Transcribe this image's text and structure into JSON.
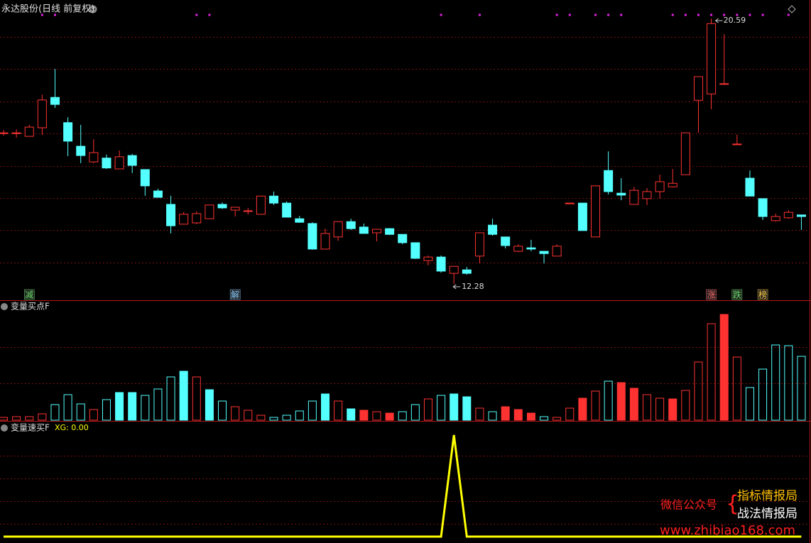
{
  "chart_data": [
    {
      "type": "candlestick",
      "title": "永达股份(日线 前复权)",
      "ylim": [
        11.79,
        20.77
      ],
      "up_color": "#ff3232",
      "down_color": "#54ffff",
      "grid": true,
      "open": [
        17.01,
        16.99,
        16.9,
        17.17,
        18.12,
        17.33,
        16.59,
        16.1,
        16.22,
        15.88,
        16.3,
        15.86,
        15.19,
        14.77,
        14.15,
        14.19,
        14.32,
        14.77,
        14.59,
        14.57,
        14.46,
        15.03,
        14.81,
        14.32,
        14.17,
        13.37,
        13.75,
        14.23,
        14.06,
        13.88,
        14.01,
        13.83,
        13.57,
        13.01,
        13.12,
        12.61,
        12.72,
        13.15,
        14.12,
        13.75,
        13.3,
        13.41,
        13.3,
        13.15,
        14.81,
        14.81,
        13.75,
        15.83,
        15.12,
        14.77,
        14.95,
        15.17,
        15.32,
        15.7,
        18.03,
        18.23,
        18.55,
        16.66,
        15.59,
        14.95,
        14.26,
        14.35,
        14.44
      ],
      "high": [
        17.1,
        17.12,
        17.26,
        18.21,
        19.01,
        17.5,
        17.26,
        16.81,
        16.33,
        16.46,
        16.35,
        15.86,
        15.26,
        15.04,
        14.53,
        14.55,
        14.75,
        14.83,
        14.68,
        14.66,
        15.03,
        15.17,
        14.86,
        14.41,
        14.21,
        14.01,
        14.23,
        14.32,
        14.17,
        13.99,
        14.03,
        13.83,
        13.57,
        13.17,
        13.17,
        12.83,
        12.81,
        13.88,
        14.32,
        13.75,
        13.52,
        13.66,
        13.3,
        13.52,
        14.81,
        14.81,
        15.35,
        16.43,
        15.59,
        15.32,
        15.28,
        15.7,
        15.88,
        17.01,
        18.77,
        20.59,
        20.1,
        16.95,
        15.83,
        14.95,
        14.48,
        14.59,
        14.44
      ],
      "low": [
        16.92,
        16.86,
        16.9,
        16.95,
        17.79,
        16.28,
        16.06,
        16.06,
        15.88,
        15.88,
        15.75,
        15.04,
        14.99,
        13.86,
        14.15,
        14.15,
        14.32,
        14.63,
        14.39,
        14.46,
        14.46,
        14.75,
        14.37,
        14.19,
        13.35,
        13.37,
        13.63,
        13.97,
        13.86,
        13.61,
        13.81,
        13.52,
        13.06,
        12.86,
        12.63,
        12.28,
        12.57,
        12.92,
        13.79,
        13.39,
        13.28,
        13.3,
        12.92,
        13.15,
        14.81,
        13.95,
        13.75,
        15.08,
        14.9,
        14.77,
        14.75,
        14.95,
        15.3,
        15.7,
        17.01,
        17.75,
        18.55,
        16.66,
        15.03,
        14.28,
        14.23,
        14.32,
        13.97
      ],
      "close": [
        17.01,
        17.01,
        17.19,
        18.04,
        17.9,
        16.75,
        16.3,
        16.39,
        15.91,
        16.26,
        15.99,
        15.35,
        14.99,
        14.1,
        14.46,
        14.48,
        14.75,
        14.66,
        14.68,
        14.57,
        15.03,
        14.81,
        14.37,
        14.21,
        13.37,
        13.86,
        14.23,
        14.01,
        13.86,
        13.99,
        13.83,
        13.57,
        13.08,
        13.12,
        12.68,
        12.83,
        12.61,
        13.88,
        13.83,
        13.48,
        13.46,
        13.37,
        13.23,
        13.46,
        14.81,
        13.95,
        15.35,
        15.17,
        15.06,
        15.21,
        15.17,
        15.48,
        15.43,
        17.01,
        18.77,
        20.43,
        18.55,
        16.66,
        15.03,
        14.39,
        14.39,
        14.52,
        14.39
      ],
      "marker_x": [
        3,
        4,
        15,
        16,
        34,
        37,
        43,
        44,
        46,
        47,
        48,
        52,
        53,
        54,
        55,
        56,
        57,
        58,
        59,
        61
      ],
      "marker_color": "#e020e0",
      "signals": [
        {
          "x": 2,
          "label": "减",
          "color": "#66dd66"
        },
        {
          "x": 18,
          "label": "解",
          "color": "#88ccff"
        },
        {
          "x": 55,
          "label": "涨",
          "color": "#ff6666"
        },
        {
          "x": 57,
          "label": "跌",
          "color": "#66dd66"
        },
        {
          "x": 59,
          "label": "榜",
          "color": "#ffcc44"
        }
      ]
    },
    {
      "type": "bar",
      "title": "变量买点F",
      "ylim": [
        0,
        168
      ],
      "grid": true,
      "values": [
        4,
        5,
        5,
        9,
        22,
        36,
        23,
        15,
        29,
        39,
        39,
        35,
        44,
        61,
        69,
        61,
        43,
        27,
        19,
        14,
        7,
        4,
        7,
        13,
        27,
        37,
        27,
        16,
        14,
        12,
        10,
        12,
        22,
        30,
        35,
        37,
        33,
        17,
        12,
        19,
        15,
        10,
        5,
        4,
        17,
        31,
        41,
        55,
        53,
        45,
        36,
        31,
        30,
        42,
        82,
        136,
        149,
        89,
        46,
        72,
        106,
        105,
        90
      ],
      "colors": [
        "#ff3232",
        "#ff3232",
        "#ff3232",
        "#ff3232",
        "#54ffff",
        "#54ffff",
        "#54ffff",
        "#ff3232",
        "#54ffff",
        "#54ffff",
        "#54ffff",
        "#54ffff",
        "#54ffff",
        "#54ffff",
        "#54ffff",
        "#ff3232",
        "#54ffff",
        "#54ffff",
        "#ff3232",
        "#ff3232",
        "#ff3232",
        "#54ffff",
        "#54ffff",
        "#54ffff",
        "#54ffff",
        "#54ffff",
        "#ff3232",
        "#54ffff",
        "#ff3232",
        "#ff3232",
        "#ff3232",
        "#54ffff",
        "#54ffff",
        "#ff3232",
        "#54ffff",
        "#54ffff",
        "#54ffff",
        "#ff3232",
        "#54ffff",
        "#ff3232",
        "#ff3232",
        "#ff3232",
        "#54ffff",
        "#ff3232",
        "#ff3232",
        "#ff3232",
        "#ff3232",
        "#54ffff",
        "#ff3232",
        "#ff3232",
        "#ff3232",
        "#ff3232",
        "#ff3232",
        "#ff3232",
        "#ff3232",
        "#ff3232",
        "#ff3232",
        "#ff3232",
        "#54ffff",
        "#54ffff",
        "#54ffff",
        "#54ffff",
        "#54ffff"
      ],
      "filled": [
        false,
        false,
        false,
        false,
        false,
        false,
        false,
        false,
        false,
        true,
        true,
        false,
        false,
        false,
        true,
        false,
        true,
        false,
        false,
        false,
        false,
        false,
        false,
        false,
        false,
        true,
        false,
        true,
        true,
        false,
        true,
        false,
        false,
        false,
        false,
        true,
        true,
        false,
        false,
        true,
        true,
        true,
        false,
        false,
        false,
        true,
        false,
        false,
        true,
        true,
        false,
        false,
        true,
        false,
        false,
        false,
        true,
        false,
        false,
        false,
        false,
        false,
        false
      ]
    },
    {
      "type": "line",
      "title": "变量速买F",
      "legend": "XG: 0.00",
      "ylim": [
        0,
        1
      ],
      "color": "#ffff00",
      "grid": true,
      "values": [
        0,
        0,
        0,
        0,
        0,
        0,
        0,
        0,
        0,
        0,
        0,
        0,
        0,
        0,
        0,
        0,
        0,
        0,
        0,
        0,
        0,
        0,
        0,
        0,
        0,
        0,
        0,
        0,
        0,
        0,
        0,
        0,
        0,
        0,
        0,
        1,
        0,
        0,
        0,
        0,
        0,
        0,
        0,
        0,
        0,
        0,
        0,
        0,
        0,
        0,
        0,
        0,
        0,
        0,
        0,
        0,
        0,
        0,
        0,
        0,
        0,
        0,
        0
      ]
    }
  ],
  "watermark": {
    "label": "微信公众号",
    "brand1": "指标情报局",
    "brand2": "战法情报局",
    "url": "www.zhibiao168.com"
  }
}
